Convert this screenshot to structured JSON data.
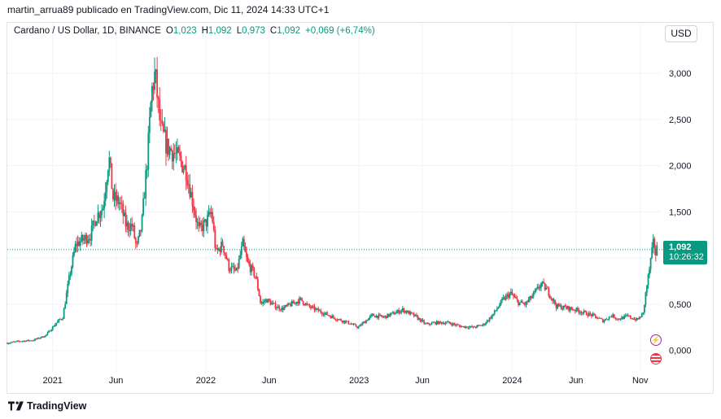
{
  "header": {
    "attribution": "martin_arrua89 publicado en TradingView.com, Dic 11, 2024 14:33 UTC+1"
  },
  "legend": {
    "symbol": "Cardano / US Dollar, 1D, BINANCE",
    "open_label": "O",
    "open": "1,023",
    "high_label": "H",
    "high": "1,092",
    "low_label": "L",
    "low": "0,973",
    "close_label": "C",
    "close": "1,092",
    "change": "+0,069 (+6,74%)"
  },
  "currency_button": "USD",
  "price_tag": {
    "price": "1,092",
    "countdown": "10:26:32"
  },
  "footer": {
    "brand": "TradingView"
  },
  "colors": {
    "up": "#089981",
    "down": "#f23645",
    "line": "#089981",
    "grid": "#f0f3fa"
  },
  "icons": [
    "lightning-icon",
    "us-flag-icon",
    "tradingview-logo-icon"
  ],
  "chart_data": {
    "type": "candlestick",
    "symbol": "ADAUSD",
    "interval": "1D",
    "y_ticks": [
      {
        "value": 0.0,
        "label": "0,000"
      },
      {
        "value": 0.5,
        "label": "0,500"
      },
      {
        "value": 1.0,
        "label": ""
      },
      {
        "value": 1.5,
        "label": "1,500"
      },
      {
        "value": 2.0,
        "label": "2,000"
      },
      {
        "value": 2.5,
        "label": "2,500"
      },
      {
        "value": 3.0,
        "label": "3,000"
      }
    ],
    "ylim": [
      -0.24,
      3.3
    ],
    "x_ticks": [
      {
        "date": "2021-01-01",
        "label": "2021"
      },
      {
        "date": "2021-06-01",
        "label": "Jun"
      },
      {
        "date": "2022-01-01",
        "label": "2022"
      },
      {
        "date": "2022-06-01",
        "label": "Jun"
      },
      {
        "date": "2023-01-01",
        "label": "2023"
      },
      {
        "date": "2023-06-01",
        "label": "Jun"
      },
      {
        "date": "2024-01-01",
        "label": "2024"
      },
      {
        "date": "2024-06-01",
        "label": "Jun"
      },
      {
        "date": "2024-11-01",
        "label": "Nov"
      }
    ],
    "xlim": [
      "2020-09-15",
      "2024-12-20"
    ],
    "last_price": 1.092,
    "close_path": [
      [
        "2020-09-15",
        0.08
      ],
      [
        "2020-10-15",
        0.1
      ],
      [
        "2020-11-15",
        0.11
      ],
      [
        "2020-12-15",
        0.16
      ],
      [
        "2021-01-10",
        0.3
      ],
      [
        "2021-01-25",
        0.36
      ],
      [
        "2021-02-10",
        0.8
      ],
      [
        "2021-02-25",
        1.15
      ],
      [
        "2021-03-15",
        1.2
      ],
      [
        "2021-04-01",
        1.25
      ],
      [
        "2021-04-15",
        1.45
      ],
      [
        "2021-05-01",
        1.55
      ],
      [
        "2021-05-15",
        2.1
      ],
      [
        "2021-05-25",
        1.65
      ],
      [
        "2021-06-10",
        1.6
      ],
      [
        "2021-06-25",
        1.35
      ],
      [
        "2021-07-10",
        1.35
      ],
      [
        "2021-07-20",
        1.1
      ],
      [
        "2021-08-01",
        1.35
      ],
      [
        "2021-08-15",
        2.1
      ],
      [
        "2021-08-25",
        2.8
      ],
      [
        "2021-09-02",
        3.0
      ],
      [
        "2021-09-15",
        2.4
      ],
      [
        "2021-10-01",
        2.2
      ],
      [
        "2021-10-15",
        2.15
      ],
      [
        "2021-11-01",
        2.05
      ],
      [
        "2021-11-15",
        1.95
      ],
      [
        "2021-12-01",
        1.6
      ],
      [
        "2021-12-15",
        1.3
      ],
      [
        "2022-01-01",
        1.38
      ],
      [
        "2022-01-15",
        1.5
      ],
      [
        "2022-01-25",
        1.05
      ],
      [
        "2022-02-10",
        1.15
      ],
      [
        "2022-02-25",
        0.9
      ],
      [
        "2022-03-15",
        0.85
      ],
      [
        "2022-03-30",
        1.15
      ],
      [
        "2022-04-10",
        0.95
      ],
      [
        "2022-04-30",
        0.8
      ],
      [
        "2022-05-12",
        0.5
      ],
      [
        "2022-05-25",
        0.55
      ],
      [
        "2022-06-15",
        0.48
      ],
      [
        "2022-07-01",
        0.45
      ],
      [
        "2022-08-01",
        0.52
      ],
      [
        "2022-08-15",
        0.55
      ],
      [
        "2022-09-01",
        0.48
      ],
      [
        "2022-10-01",
        0.42
      ],
      [
        "2022-11-10",
        0.34
      ],
      [
        "2022-12-01",
        0.31
      ],
      [
        "2022-12-30",
        0.25
      ],
      [
        "2023-02-01",
        0.38
      ],
      [
        "2023-03-01",
        0.36
      ],
      [
        "2023-04-15",
        0.44
      ],
      [
        "2023-05-15",
        0.37
      ],
      [
        "2023-06-10",
        0.28
      ],
      [
        "2023-07-01",
        0.3
      ],
      [
        "2023-08-01",
        0.3
      ],
      [
        "2023-09-01",
        0.26
      ],
      [
        "2023-10-01",
        0.25
      ],
      [
        "2023-10-25",
        0.28
      ],
      [
        "2023-11-15",
        0.38
      ],
      [
        "2023-12-10",
        0.55
      ],
      [
        "2023-12-28",
        0.62
      ],
      [
        "2024-01-15",
        0.52
      ],
      [
        "2024-02-01",
        0.5
      ],
      [
        "2024-02-20",
        0.6
      ],
      [
        "2024-03-10",
        0.72
      ],
      [
        "2024-03-25",
        0.65
      ],
      [
        "2024-04-15",
        0.48
      ],
      [
        "2024-05-10",
        0.46
      ],
      [
        "2024-06-01",
        0.44
      ],
      [
        "2024-06-25",
        0.4
      ],
      [
        "2024-07-10",
        0.38
      ],
      [
        "2024-08-05",
        0.32
      ],
      [
        "2024-08-25",
        0.38
      ],
      [
        "2024-09-10",
        0.34
      ],
      [
        "2024-10-01",
        0.37
      ],
      [
        "2024-10-25",
        0.33
      ],
      [
        "2024-11-08",
        0.4
      ],
      [
        "2024-11-15",
        0.65
      ],
      [
        "2024-11-22",
        0.85
      ],
      [
        "2024-12-03",
        1.18
      ],
      [
        "2024-12-08",
        1.05
      ],
      [
        "2024-12-11",
        1.092
      ]
    ]
  }
}
